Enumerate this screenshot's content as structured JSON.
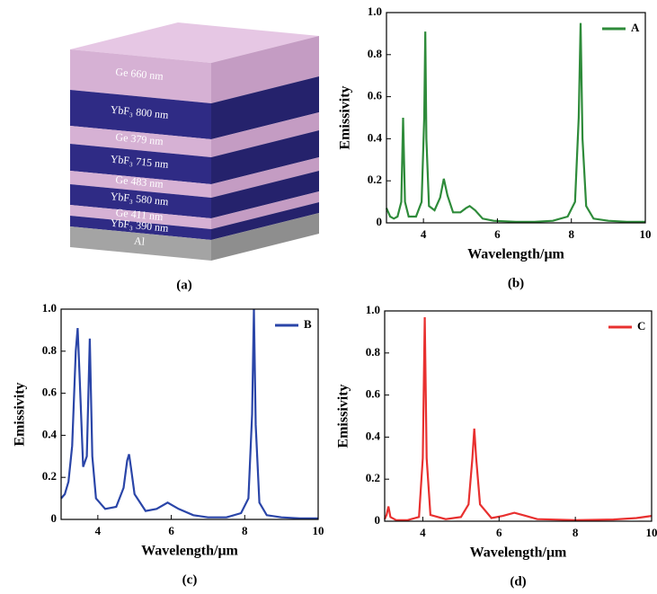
{
  "diagram": {
    "layers": [
      {
        "label": "Ge 660 nm"
      },
      {
        "label": "YbF₃ 800 nm"
      },
      {
        "label": "Ge 379 nm"
      },
      {
        "label": "YbF₃ 715 nm"
      },
      {
        "label": "Ge 483 nm"
      },
      {
        "label": "YbF₃ 580 nm"
      },
      {
        "label": "Ge 411 nm"
      },
      {
        "label": "YbF₃ 390 nm"
      },
      {
        "label": "Al"
      }
    ],
    "caption": "(a)"
  },
  "chart_data": [
    {
      "type": "line",
      "caption": "(b)",
      "xlabel": "Wavelength/μm",
      "ylabel": "Emissivity",
      "xlim": [
        3,
        10
      ],
      "ylim": [
        0,
        1
      ],
      "xticks": [
        4,
        6,
        8,
        10
      ],
      "yticks": [
        0,
        0.2,
        0.4,
        0.6,
        0.8,
        {
          "value": 1,
          "label": "1.0"
        }
      ],
      "legend": "upper right",
      "x": [
        3.0,
        3.1,
        3.2,
        3.3,
        3.4,
        3.45,
        3.5,
        3.6,
        3.8,
        3.95,
        4.02,
        4.05,
        4.08,
        4.15,
        4.3,
        4.45,
        4.55,
        4.65,
        4.8,
        5.0,
        5.15,
        5.25,
        5.4,
        5.6,
        5.9,
        6.5,
        7.0,
        7.5,
        7.9,
        8.1,
        8.2,
        8.25,
        8.3,
        8.4,
        8.6,
        9.0,
        9.5,
        10.0
      ],
      "series": [
        {
          "name": "A",
          "color": "#2e8b3a",
          "values": [
            0.07,
            0.03,
            0.02,
            0.03,
            0.1,
            0.5,
            0.1,
            0.03,
            0.03,
            0.1,
            0.5,
            0.91,
            0.4,
            0.08,
            0.06,
            0.12,
            0.21,
            0.13,
            0.05,
            0.05,
            0.07,
            0.08,
            0.06,
            0.02,
            0.01,
            0.005,
            0.005,
            0.01,
            0.03,
            0.1,
            0.5,
            0.95,
            0.4,
            0.08,
            0.02,
            0.01,
            0.005,
            0.005
          ]
        }
      ]
    },
    {
      "type": "line",
      "caption": "(c)",
      "xlabel": "Wavelength/μm",
      "ylabel": "Emissivity",
      "xlim": [
        3,
        10
      ],
      "ylim": [
        0,
        1
      ],
      "xticks": [
        4,
        6,
        8,
        10
      ],
      "yticks": [
        0,
        0.2,
        0.4,
        0.6,
        0.8,
        {
          "value": 1,
          "label": "1.0"
        }
      ],
      "legend": "upper right",
      "x": [
        3.0,
        3.1,
        3.2,
        3.3,
        3.4,
        3.45,
        3.5,
        3.6,
        3.7,
        3.78,
        3.85,
        3.95,
        4.2,
        4.5,
        4.7,
        4.8,
        4.85,
        4.9,
        5.0,
        5.3,
        5.6,
        5.9,
        6.2,
        6.6,
        7.0,
        7.5,
        7.9,
        8.1,
        8.2,
        8.25,
        8.3,
        8.4,
        8.6,
        9.0,
        9.5,
        10.0
      ],
      "series": [
        {
          "name": "B",
          "color": "#2a45a8",
          "values": [
            0.1,
            0.12,
            0.18,
            0.35,
            0.8,
            0.91,
            0.7,
            0.25,
            0.3,
            0.86,
            0.3,
            0.1,
            0.05,
            0.06,
            0.15,
            0.28,
            0.31,
            0.25,
            0.12,
            0.04,
            0.05,
            0.08,
            0.05,
            0.02,
            0.01,
            0.01,
            0.03,
            0.1,
            0.5,
            1.0,
            0.45,
            0.08,
            0.02,
            0.01,
            0.005,
            0.005
          ]
        }
      ]
    },
    {
      "type": "line",
      "caption": "(d)",
      "xlabel": "Wavelength/μm",
      "ylabel": "Emissivity",
      "xlim": [
        3,
        10
      ],
      "ylim": [
        0,
        1
      ],
      "xticks": [
        4,
        6,
        8,
        10
      ],
      "yticks": [
        0,
        0.2,
        0.4,
        0.6,
        0.8,
        {
          "value": 1,
          "label": "1.0"
        }
      ],
      "legend": "upper right",
      "x": [
        3.0,
        3.05,
        3.1,
        3.15,
        3.3,
        3.6,
        3.9,
        4.0,
        4.05,
        4.1,
        4.2,
        4.6,
        5.0,
        5.2,
        5.3,
        5.35,
        5.4,
        5.5,
        5.8,
        6.1,
        6.4,
        6.7,
        7.0,
        8.0,
        9.0,
        9.6,
        10.0
      ],
      "series": [
        {
          "name": "C",
          "color": "#e8302f",
          "values": [
            0.01,
            0.03,
            0.07,
            0.02,
            0.005,
            0.005,
            0.02,
            0.3,
            0.97,
            0.3,
            0.03,
            0.01,
            0.02,
            0.08,
            0.3,
            0.44,
            0.3,
            0.08,
            0.015,
            0.025,
            0.04,
            0.025,
            0.01,
            0.005,
            0.008,
            0.015,
            0.025
          ]
        }
      ]
    }
  ]
}
